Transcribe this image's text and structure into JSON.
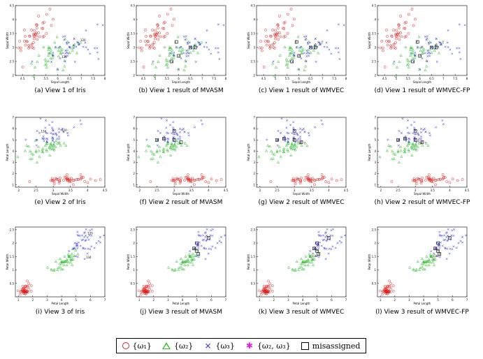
{
  "figure": {
    "legend": {
      "items": [
        {
          "symbol": "circle",
          "label": "{ω₁}",
          "color": "#e02020"
        },
        {
          "symbol": "triangle",
          "label": "{ω₂}",
          "color": "#2fbf2f"
        },
        {
          "symbol": "cross",
          "label": "{ω₃}",
          "color": "#2020e0"
        },
        {
          "symbol": "star",
          "label": "{ω₂, ω₃}",
          "color": "#e020e0"
        },
        {
          "symbol": "square",
          "label": "misassigned",
          "color": "#000000"
        }
      ]
    }
  },
  "chart_data": [
    {
      "type": "scatter",
      "view": 1,
      "caption": "(a) View 1 of Iris",
      "xlabel": "Sepal Length",
      "ylabel": "Sepal Width",
      "xticks": [
        "4.5",
        "5",
        "5.5",
        "6",
        "6.5",
        "7",
        "7.5",
        "8"
      ],
      "yticks": [
        "2",
        "2.5",
        "3",
        "3.5",
        "4",
        "4.5"
      ],
      "xlim": [
        4.2,
        8.0
      ],
      "ylim": [
        2.0,
        4.5
      ],
      "annotations": [
        "120",
        "134"
      ],
      "show_star": false
    },
    {
      "type": "scatter",
      "view": 1,
      "caption": "(b) View 1 result of MVASM",
      "xlabel": "Sepal Length",
      "ylabel": "Sepal Width",
      "xticks": [
        "4.5",
        "5",
        "5.5",
        "6",
        "6.5",
        "7",
        "7.5",
        "8"
      ],
      "yticks": [
        "2",
        "2.5",
        "3",
        "3.5",
        "4",
        "4.5"
      ],
      "xlim": [
        4.2,
        8.0
      ],
      "ylim": [
        2.0,
        4.5
      ],
      "annotations": [],
      "show_star": false
    },
    {
      "type": "scatter",
      "view": 1,
      "caption": "(c) View 1 result of WMVEC",
      "xlabel": "Sepal Length",
      "ylabel": "Sepal Width",
      "xticks": [
        "4.5",
        "5",
        "5.5",
        "6",
        "6.5",
        "7",
        "7.5",
        "8"
      ],
      "yticks": [
        "2",
        "2.5",
        "3",
        "3.5",
        "4",
        "4.5"
      ],
      "xlim": [
        4.2,
        8.0
      ],
      "ylim": [
        2.0,
        4.5
      ],
      "annotations": [],
      "show_star": true
    },
    {
      "type": "scatter",
      "view": 1,
      "caption": "(d) View 1 result of WMVEC-FP",
      "xlabel": "Sepal Length",
      "ylabel": "Sepal Width",
      "xticks": [
        "4.5",
        "5",
        "5.5",
        "6",
        "6.5",
        "7",
        "7.5",
        "8"
      ],
      "yticks": [
        "2",
        "2.5",
        "3",
        "3.5",
        "4",
        "4.5"
      ],
      "xlim": [
        4.2,
        8.0
      ],
      "ylim": [
        2.0,
        4.5
      ],
      "annotations": [],
      "show_star": true
    },
    {
      "type": "scatter",
      "view": 2,
      "caption": "(e) View 2 of Iris",
      "xlabel": "Sepal Width",
      "ylabel": "Petal Length",
      "xticks": [
        "2",
        "2.5",
        "3",
        "3.5",
        "4",
        "4.5"
      ],
      "yticks": [
        "1",
        "2",
        "3",
        "4",
        "5",
        "6",
        "7"
      ],
      "xlim": [
        1.9,
        4.5
      ],
      "ylim": [
        0.8,
        7.0
      ],
      "annotations": [
        "120",
        "134"
      ],
      "show_star": false
    },
    {
      "type": "scatter",
      "view": 2,
      "caption": "(f) View 2 result of MVASM",
      "xlabel": "Sepal Width",
      "ylabel": "Petal Length",
      "xticks": [
        "2",
        "2.5",
        "3",
        "3.5",
        "4",
        "4.5"
      ],
      "yticks": [
        "1",
        "2",
        "3",
        "4",
        "5",
        "6",
        "7"
      ],
      "xlim": [
        1.9,
        4.5
      ],
      "ylim": [
        0.8,
        7.0
      ],
      "annotations": [],
      "show_star": false
    },
    {
      "type": "scatter",
      "view": 2,
      "caption": "(g) View 2 result of WMVEC",
      "xlabel": "Sepal Width",
      "ylabel": "Petal Length",
      "xticks": [
        "2",
        "2.5",
        "3",
        "3.5",
        "4",
        "4.5"
      ],
      "yticks": [
        "1",
        "2",
        "3",
        "4",
        "5",
        "6",
        "7"
      ],
      "xlim": [
        1.9,
        4.5
      ],
      "ylim": [
        0.8,
        7.0
      ],
      "annotations": [],
      "show_star": true
    },
    {
      "type": "scatter",
      "view": 2,
      "caption": "(h) View 2 result of WMVEC-FP",
      "xlabel": "Sepal Width",
      "ylabel": "Petal Length",
      "xticks": [
        "2",
        "2.5",
        "3",
        "3.5",
        "4",
        "4.5"
      ],
      "yticks": [
        "1",
        "2",
        "3",
        "4",
        "5",
        "6",
        "7"
      ],
      "xlim": [
        1.9,
        4.5
      ],
      "ylim": [
        0.8,
        7.0
      ],
      "annotations": [],
      "show_star": true
    },
    {
      "type": "scatter",
      "view": 3,
      "caption": "(i) View 3 of Iris",
      "xlabel": "Petal Length",
      "ylabel": "Petal Width",
      "xticks": [
        "1",
        "2",
        "3",
        "4",
        "5",
        "6",
        "7"
      ],
      "yticks": [
        "0.5",
        "1",
        "1.5",
        "2",
        "2.5"
      ],
      "xlim": [
        0.8,
        7.0
      ],
      "ylim": [
        0.0,
        2.6
      ],
      "annotations": [
        "120",
        "134"
      ],
      "show_star": false
    },
    {
      "type": "scatter",
      "view": 3,
      "caption": "(j) View 3 result of MVASM",
      "xlabel": "Petal Length",
      "ylabel": "Petal Width",
      "xticks": [
        "1",
        "2",
        "3",
        "4",
        "5",
        "6",
        "7"
      ],
      "yticks": [
        "0.5",
        "1",
        "1.5",
        "2",
        "2.5"
      ],
      "xlim": [
        0.8,
        7.0
      ],
      "ylim": [
        0.0,
        2.6
      ],
      "annotations": [],
      "show_star": false
    },
    {
      "type": "scatter",
      "view": 3,
      "caption": "(k) View 3 result of WMVEC",
      "xlabel": "Petal Length",
      "ylabel": "Petal Width",
      "xticks": [
        "1",
        "2",
        "3",
        "4",
        "5",
        "6",
        "7"
      ],
      "yticks": [
        "0.5",
        "1",
        "1.5",
        "2",
        "2.5"
      ],
      "xlim": [
        0.8,
        7.0
      ],
      "ylim": [
        0.0,
        2.6
      ],
      "annotations": [],
      "show_star": true
    },
    {
      "type": "scatter",
      "view": 3,
      "caption": "(l) View 3 result of WMVEC-FP",
      "xlabel": "Petal Length",
      "ylabel": "Petal Width",
      "xticks": [
        "1",
        "2",
        "3",
        "4",
        "5",
        "6",
        "7"
      ],
      "yticks": [
        "0.5",
        "1",
        "1.5",
        "2",
        "2.5"
      ],
      "xlim": [
        0.8,
        7.0
      ],
      "ylim": [
        0.0,
        2.6
      ],
      "annotations": [],
      "show_star": true
    }
  ],
  "series": {
    "setosa": {
      "sepal_length": [
        5.1,
        4.9,
        4.7,
        4.6,
        5.0,
        5.4,
        4.6,
        5.0,
        4.4,
        4.9,
        5.4,
        4.8,
        4.8,
        4.3,
        5.8,
        5.7,
        5.4,
        5.1,
        5.7,
        5.1,
        5.4,
        5.1,
        4.6,
        5.1,
        4.8,
        5.0,
        5.0,
        5.2,
        5.2,
        4.7,
        4.8,
        5.4,
        5.2,
        5.5,
        4.9,
        5.0,
        5.5,
        4.9,
        4.4,
        5.1,
        5.0,
        4.5,
        4.4,
        5.0,
        5.1,
        4.8,
        5.1,
        4.6,
        5.3,
        5.0
      ],
      "sepal_width": [
        3.5,
        3.0,
        3.2,
        3.1,
        3.6,
        3.9,
        3.4,
        3.4,
        2.9,
        3.1,
        3.7,
        3.4,
        3.0,
        3.0,
        4.0,
        4.4,
        3.9,
        3.5,
        3.8,
        3.8,
        3.4,
        3.7,
        3.6,
        3.3,
        3.4,
        3.0,
        3.4,
        3.5,
        3.4,
        3.2,
        3.1,
        3.4,
        4.1,
        4.2,
        3.1,
        3.2,
        3.5,
        3.6,
        3.0,
        3.4,
        3.5,
        2.3,
        3.2,
        3.5,
        3.8,
        3.0,
        3.8,
        3.2,
        3.7,
        3.3
      ],
      "petal_length": [
        1.4,
        1.4,
        1.3,
        1.5,
        1.4,
        1.7,
        1.4,
        1.5,
        1.4,
        1.5,
        1.5,
        1.6,
        1.4,
        1.1,
        1.2,
        1.5,
        1.3,
        1.4,
        1.7,
        1.5,
        1.7,
        1.5,
        1.0,
        1.7,
        1.9,
        1.6,
        1.6,
        1.5,
        1.4,
        1.6,
        1.6,
        1.5,
        1.5,
        1.4,
        1.5,
        1.2,
        1.3,
        1.4,
        1.3,
        1.5,
        1.3,
        1.3,
        1.3,
        1.6,
        1.9,
        1.4,
        1.6,
        1.4,
        1.5,
        1.4
      ],
      "petal_width": [
        0.2,
        0.2,
        0.2,
        0.2,
        0.2,
        0.4,
        0.3,
        0.2,
        0.2,
        0.1,
        0.2,
        0.2,
        0.1,
        0.1,
        0.2,
        0.4,
        0.4,
        0.3,
        0.3,
        0.3,
        0.2,
        0.4,
        0.2,
        0.5,
        0.2,
        0.2,
        0.4,
        0.2,
        0.2,
        0.2,
        0.2,
        0.4,
        0.1,
        0.2,
        0.2,
        0.2,
        0.2,
        0.1,
        0.2,
        0.2,
        0.3,
        0.3,
        0.2,
        0.6,
        0.4,
        0.3,
        0.2,
        0.2,
        0.2,
        0.2
      ]
    },
    "versicolor": {
      "sepal_length": [
        7.0,
        6.4,
        6.9,
        5.5,
        6.5,
        5.7,
        6.3,
        4.9,
        6.6,
        5.2,
        5.0,
        5.9,
        6.0,
        6.1,
        5.6,
        6.7,
        5.6,
        5.8,
        6.2,
        5.6,
        5.9,
        6.1,
        6.3,
        6.1,
        6.4,
        6.6,
        6.8,
        6.7,
        6.0,
        5.7,
        5.5,
        5.5,
        5.8,
        6.0,
        5.4,
        6.0,
        6.7,
        6.3,
        5.6,
        5.5,
        5.5,
        6.1,
        5.8,
        5.0,
        5.6,
        5.7,
        5.7,
        6.2,
        5.1,
        5.7
      ],
      "sepal_width": [
        3.2,
        3.2,
        3.1,
        2.3,
        2.8,
        2.8,
        3.3,
        2.4,
        2.9,
        2.7,
        2.0,
        3.0,
        2.2,
        2.9,
        2.9,
        3.1,
        3.0,
        2.7,
        2.2,
        2.5,
        3.2,
        2.8,
        2.5,
        2.8,
        2.9,
        3.0,
        2.8,
        3.0,
        2.9,
        2.6,
        2.4,
        2.4,
        2.7,
        2.7,
        3.0,
        3.4,
        3.1,
        2.3,
        3.0,
        2.5,
        2.6,
        3.0,
        2.6,
        2.3,
        2.7,
        3.0,
        2.9,
        2.9,
        2.5,
        2.8
      ],
      "petal_length": [
        4.7,
        4.5,
        4.9,
        4.0,
        4.6,
        4.5,
        4.7,
        3.3,
        4.6,
        3.9,
        3.5,
        4.2,
        4.0,
        4.7,
        3.6,
        4.4,
        4.5,
        4.1,
        4.5,
        3.9,
        4.8,
        4.0,
        4.9,
        4.7,
        4.3,
        4.4,
        4.8,
        5.0,
        4.5,
        3.5,
        3.8,
        3.7,
        3.9,
        5.1,
        4.5,
        4.5,
        4.7,
        4.4,
        4.1,
        4.0,
        4.4,
        4.6,
        4.0,
        3.3,
        4.2,
        4.2,
        4.2,
        4.3,
        3.0,
        4.1
      ],
      "petal_width": [
        1.4,
        1.5,
        1.5,
        1.3,
        1.5,
        1.3,
        1.6,
        1.0,
        1.3,
        1.4,
        1.0,
        1.5,
        1.0,
        1.4,
        1.3,
        1.4,
        1.5,
        1.0,
        1.5,
        1.1,
        1.8,
        1.3,
        1.5,
        1.2,
        1.3,
        1.4,
        1.4,
        1.7,
        1.5,
        1.0,
        1.1,
        1.0,
        1.2,
        1.6,
        1.5,
        1.6,
        1.5,
        1.3,
        1.3,
        1.3,
        1.2,
        1.4,
        1.2,
        1.0,
        1.3,
        1.2,
        1.3,
        1.3,
        1.1,
        1.3
      ]
    },
    "virginica": {
      "sepal_length": [
        6.3,
        5.8,
        7.1,
        6.3,
        6.5,
        7.6,
        4.9,
        7.3,
        6.7,
        7.2,
        6.5,
        6.4,
        6.8,
        5.7,
        5.8,
        6.4,
        6.5,
        7.7,
        7.7,
        6.0,
        6.9,
        5.6,
        7.7,
        6.3,
        6.7,
        7.2,
        6.2,
        6.1,
        6.4,
        7.2,
        7.4,
        7.9,
        6.4,
        6.3,
        6.1,
        7.7,
        6.3,
        6.4,
        6.0,
        6.9,
        6.7,
        6.9,
        5.8,
        6.8,
        6.7,
        6.7,
        6.3,
        6.5,
        6.2,
        5.9
      ],
      "sepal_width": [
        3.3,
        2.7,
        3.0,
        2.9,
        3.0,
        3.0,
        2.5,
        2.9,
        2.5,
        3.6,
        3.2,
        2.7,
        3.0,
        2.5,
        2.8,
        3.2,
        3.0,
        3.8,
        2.6,
        2.2,
        3.2,
        2.8,
        2.8,
        2.7,
        3.3,
        3.2,
        2.8,
        3.0,
        2.8,
        3.0,
        2.8,
        3.8,
        2.8,
        2.8,
        2.6,
        3.0,
        3.4,
        3.1,
        3.0,
        3.1,
        3.1,
        3.1,
        2.7,
        3.2,
        3.3,
        3.0,
        2.5,
        3.0,
        3.4,
        3.0
      ],
      "petal_length": [
        6.0,
        5.1,
        5.9,
        5.6,
        5.8,
        6.6,
        4.5,
        6.3,
        5.8,
        6.1,
        5.1,
        5.3,
        5.5,
        5.0,
        5.1,
        5.3,
        5.5,
        6.7,
        6.9,
        5.0,
        5.7,
        4.9,
        6.7,
        4.9,
        5.7,
        6.0,
        4.8,
        4.9,
        5.6,
        5.8,
        6.1,
        6.4,
        5.6,
        5.1,
        5.6,
        6.1,
        5.6,
        5.5,
        4.8,
        5.4,
        5.6,
        5.1,
        5.1,
        5.9,
        5.7,
        5.2,
        5.0,
        5.2,
        5.4,
        5.1
      ],
      "petal_width": [
        2.5,
        1.9,
        2.1,
        1.8,
        2.2,
        2.1,
        1.7,
        1.8,
        1.8,
        2.5,
        2.0,
        1.9,
        2.1,
        2.0,
        2.4,
        2.3,
        1.8,
        2.2,
        2.3,
        1.5,
        2.3,
        2.0,
        2.0,
        1.8,
        2.1,
        1.8,
        1.8,
        1.8,
        2.1,
        1.6,
        1.9,
        2.0,
        2.2,
        1.5,
        1.4,
        2.3,
        2.4,
        1.8,
        1.8,
        2.1,
        2.4,
        2.3,
        1.9,
        2.3,
        2.5,
        2.3,
        1.9,
        2.0,
        2.3,
        1.8
      ]
    }
  }
}
